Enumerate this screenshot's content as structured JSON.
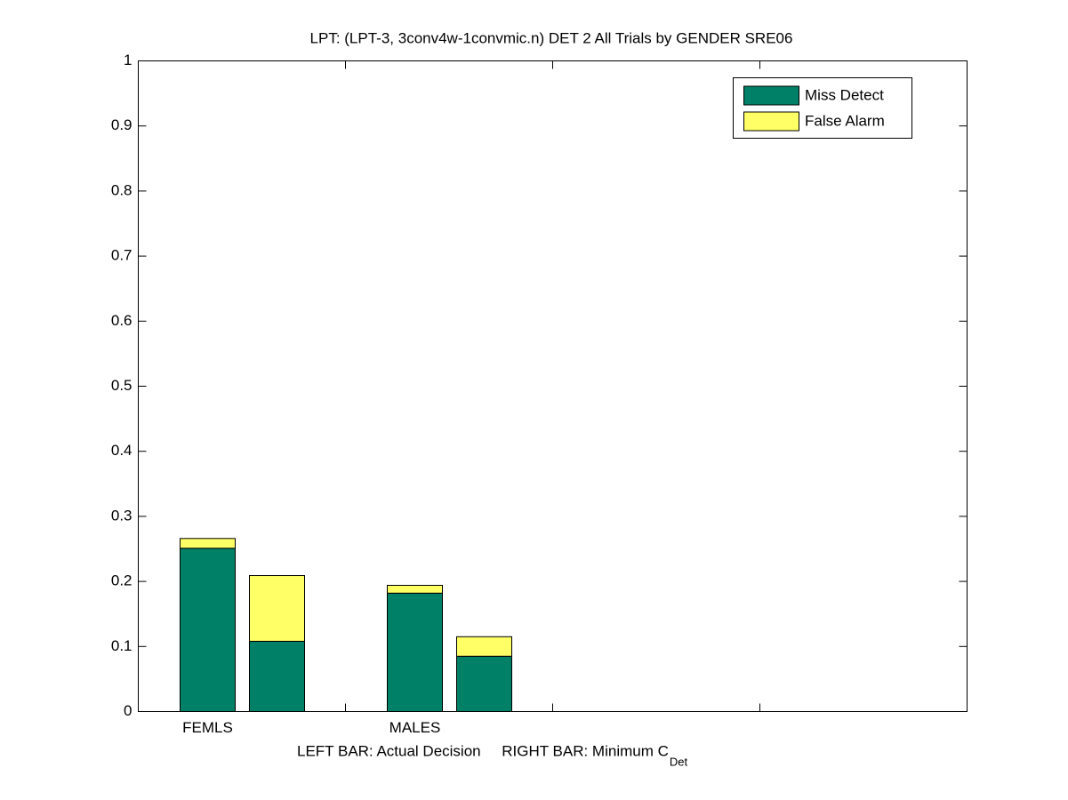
{
  "chart_data": {
    "type": "stacked-bar",
    "title": "LPT: (LPT-3, 3conv4w-1convmic.n) DET 2 All Trials by GENDER SRE06",
    "xlabel": "LEFT BAR: Actual Decision     RIGHT BAR: Minimum C",
    "xlabel_subscript": "Det",
    "categories": [
      "FEMLS",
      null,
      "MALES",
      null
    ],
    "series": [
      {
        "name": "Miss Detect",
        "color": "#008066",
        "values": [
          0.251,
          0.108,
          0.182,
          0.085
        ]
      },
      {
        "name": "False Alarm",
        "color": "#ffff66",
        "values": [
          0.015,
          0.101,
          0.012,
          0.03
        ]
      }
    ],
    "ylim": [
      0,
      1
    ],
    "yticks": [
      0,
      0.1,
      0.2,
      0.3,
      0.4,
      0.5,
      0.6,
      0.7,
      0.8,
      0.9,
      1
    ],
    "grid": false,
    "legend": "upper-right"
  }
}
